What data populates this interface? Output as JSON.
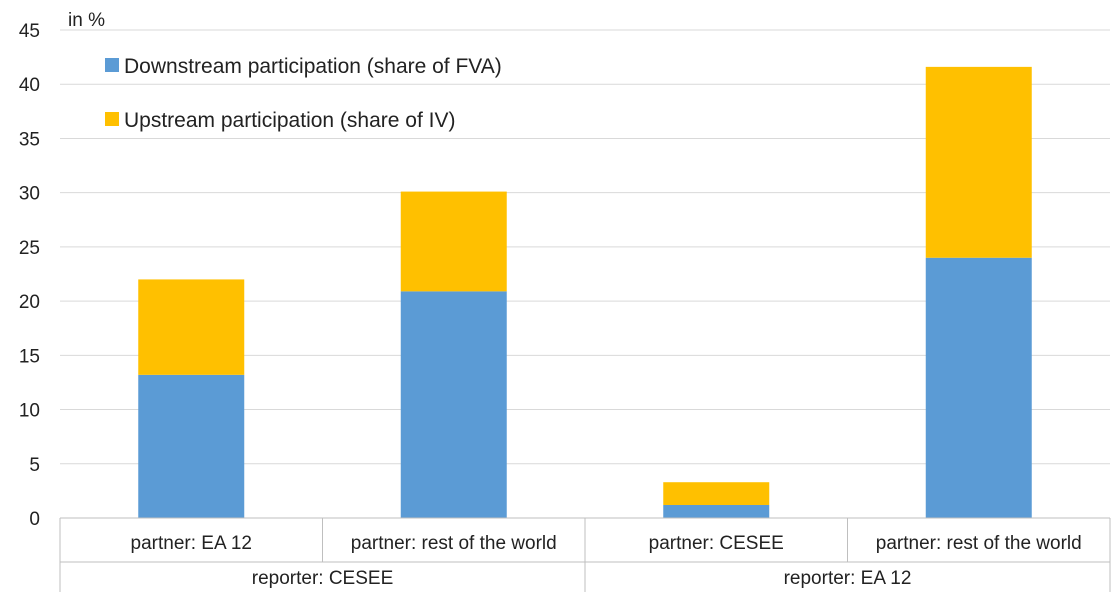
{
  "chart_data": {
    "type": "bar",
    "stacked": true,
    "unit_label": "in %",
    "ylim": [
      0,
      45
    ],
    "yticks": [
      "0",
      "5",
      "10",
      "15",
      "20",
      "25",
      "30",
      "35",
      "40",
      "45"
    ],
    "grid": true,
    "legend_position": "top-left",
    "categories": [
      "partner: EA 12",
      "partner: rest of the world",
      "partner: CESEE",
      "partner: rest of the world"
    ],
    "groups": [
      {
        "label": "reporter: CESEE",
        "categories": [
          0,
          1
        ]
      },
      {
        "label": "reporter: EA 12",
        "categories": [
          2,
          3
        ]
      }
    ],
    "series": [
      {
        "name": "Downstream participation (share of FVA)",
        "color": "#5B9BD5",
        "values": [
          13.2,
          20.9,
          1.2,
          24.0
        ]
      },
      {
        "name": "Upstream participation (share of IV)",
        "color": "#FFC000",
        "values": [
          8.8,
          9.2,
          2.1,
          17.6
        ]
      }
    ]
  }
}
